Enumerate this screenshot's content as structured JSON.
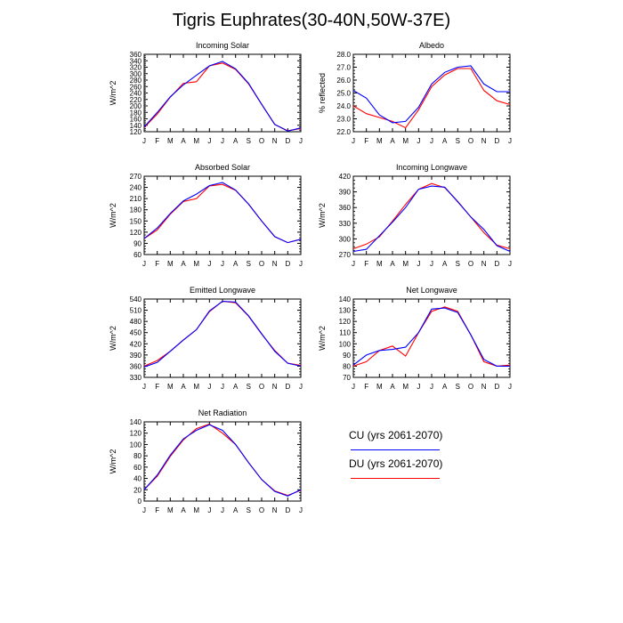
{
  "title": "Tigris Euphrates(30-40N,50W-37E)",
  "legend": [
    {
      "label": "CU (yrs 2061-2070)",
      "color": "#0000ff"
    },
    {
      "label": "DU (yrs 2061-2070)",
      "color": "#ff0000"
    }
  ],
  "chart_data": [
    {
      "type": "line",
      "title": "Incoming Solar",
      "ylabel": "W/m^2",
      "categories": [
        "J",
        "F",
        "M",
        "A",
        "M",
        "J",
        "J",
        "A",
        "S",
        "O",
        "N",
        "D",
        "J"
      ],
      "ylim": [
        120,
        360
      ],
      "yticks": [
        "120",
        "140",
        "160",
        "180",
        "200",
        "220",
        "240",
        "260",
        "280",
        "300",
        "320",
        "340",
        "360"
      ],
      "series": [
        {
          "name": "CU (yrs 2061-2070)",
          "color": "#0000ff",
          "values": [
            135,
            180,
            228,
            265,
            295,
            324,
            338,
            315,
            270,
            205,
            143,
            122,
            132
          ]
        },
        {
          "name": "DU (yrs 2061-2070)",
          "color": "#ff0000",
          "values": [
            133,
            175,
            227,
            270,
            275,
            324,
            333,
            313,
            268,
            205,
            142,
            123,
            130
          ]
        }
      ]
    },
    {
      "type": "line",
      "title": "Albedo",
      "ylabel": "% reflected",
      "categories": [
        "J",
        "F",
        "M",
        "A",
        "M",
        "J",
        "J",
        "A",
        "S",
        "O",
        "N",
        "D",
        "J"
      ],
      "ylim": [
        22.0,
        28.0
      ],
      "yticks": [
        "22.0",
        "23.0",
        "24.0",
        "25.0",
        "26.0",
        "27.0",
        "28.0"
      ],
      "series": [
        {
          "name": "CU (yrs 2061-2070)",
          "color": "#0000ff",
          "values": [
            25.2,
            24.6,
            23.3,
            22.7,
            22.8,
            23.9,
            25.7,
            26.6,
            27.0,
            27.1,
            25.7,
            25.1,
            25.1
          ]
        },
        {
          "name": "DU (yrs 2061-2070)",
          "color": "#ff0000",
          "values": [
            24.0,
            23.4,
            23.1,
            22.8,
            22.3,
            23.7,
            25.5,
            26.4,
            26.9,
            26.9,
            25.2,
            24.4,
            24.1
          ]
        }
      ]
    },
    {
      "type": "line",
      "title": "Absorbed Solar",
      "ylabel": "W/m^2",
      "categories": [
        "J",
        "F",
        "M",
        "A",
        "M",
        "J",
        "J",
        "A",
        "S",
        "O",
        "N",
        "D",
        "J"
      ],
      "ylim": [
        60,
        270
      ],
      "yticks": [
        "60",
        "90",
        "120",
        "150",
        "180",
        "210",
        "240",
        "270"
      ],
      "series": [
        {
          "name": "CU (yrs 2061-2070)",
          "color": "#0000ff",
          "values": [
            103,
            131,
            170,
            204,
            222,
            245,
            253,
            233,
            195,
            150,
            108,
            92,
            101
          ]
        },
        {
          "name": "DU (yrs 2061-2070)",
          "color": "#ff0000",
          "values": [
            103,
            126,
            168,
            202,
            210,
            244,
            248,
            232,
            195,
            150,
            108,
            92,
            101
          ]
        }
      ]
    },
    {
      "type": "line",
      "title": "Incoming Longwave",
      "ylabel": "W/m^2",
      "categories": [
        "J",
        "F",
        "M",
        "A",
        "M",
        "J",
        "J",
        "A",
        "S",
        "O",
        "N",
        "D",
        "J"
      ],
      "ylim": [
        270,
        420
      ],
      "yticks": [
        "270",
        "300",
        "330",
        "360",
        "390",
        "420"
      ],
      "series": [
        {
          "name": "CU (yrs 2061-2070)",
          "color": "#0000ff",
          "values": [
            276,
            280,
            306,
            332,
            360,
            395,
            401,
            399,
            371,
            342,
            318,
            287,
            276
          ]
        },
        {
          "name": "DU (yrs 2061-2070)",
          "color": "#ff0000",
          "values": [
            281,
            290,
            304,
            334,
            366,
            395,
            406,
            398,
            372,
            342,
            312,
            288,
            281
          ]
        }
      ]
    },
    {
      "type": "line",
      "title": "Emitted Longwave",
      "ylabel": "W/m^2",
      "categories": [
        "J",
        "F",
        "M",
        "A",
        "M",
        "J",
        "J",
        "A",
        "S",
        "O",
        "N",
        "D",
        "J"
      ],
      "ylim": [
        330,
        540
      ],
      "yticks": [
        "330",
        "360",
        "390",
        "420",
        "450",
        "480",
        "510",
        "540"
      ],
      "series": [
        {
          "name": "CU (yrs 2061-2070)",
          "color": "#0000ff",
          "values": [
            358,
            370,
            400,
            430,
            458,
            508,
            534,
            532,
            495,
            447,
            400,
            368,
            360
          ]
        },
        {
          "name": "DU (yrs 2061-2070)",
          "color": "#ff0000",
          "values": [
            360,
            375,
            400,
            430,
            458,
            506,
            534,
            530,
            494,
            446,
            402,
            368,
            362
          ]
        }
      ]
    },
    {
      "type": "line",
      "title": "Net Longwave",
      "ylabel": "W/m^2",
      "categories": [
        "J",
        "F",
        "M",
        "A",
        "M",
        "J",
        "J",
        "A",
        "S",
        "O",
        "N",
        "D",
        "J"
      ],
      "ylim": [
        70,
        140
      ],
      "yticks": [
        "70",
        "80",
        "90",
        "100",
        "110",
        "120",
        "130",
        "140"
      ],
      "series": [
        {
          "name": "CU (yrs 2061-2070)",
          "color": "#0000ff",
          "values": [
            81,
            90,
            94,
            95,
            97,
            110,
            131,
            132,
            128,
            108,
            86,
            80,
            80
          ]
        },
        {
          "name": "DU (yrs 2061-2070)",
          "color": "#ff0000",
          "values": [
            80,
            84,
            94,
            98,
            89,
            110,
            129,
            133,
            129,
            108,
            84,
            80,
            81
          ]
        }
      ]
    },
    {
      "type": "line",
      "title": "Net Radiation",
      "ylabel": "W/m^2",
      "categories": [
        "J",
        "F",
        "M",
        "A",
        "M",
        "J",
        "J",
        "A",
        "S",
        "O",
        "N",
        "D",
        "J"
      ],
      "ylim": [
        0,
        140
      ],
      "yticks": [
        "0",
        "20",
        "40",
        "60",
        "80",
        "100",
        "120",
        "140"
      ],
      "series": [
        {
          "name": "CU (yrs 2061-2070)",
          "color": "#0000ff",
          "values": [
            20,
            46,
            81,
            110,
            125,
            135,
            125,
            100,
            68,
            38,
            17,
            9,
            20
          ]
        },
        {
          "name": "DU (yrs 2061-2070)",
          "color": "#ff0000",
          "values": [
            20,
            44,
            79,
            108,
            128,
            136,
            120,
            100,
            68,
            38,
            18,
            10,
            19
          ]
        }
      ]
    }
  ]
}
